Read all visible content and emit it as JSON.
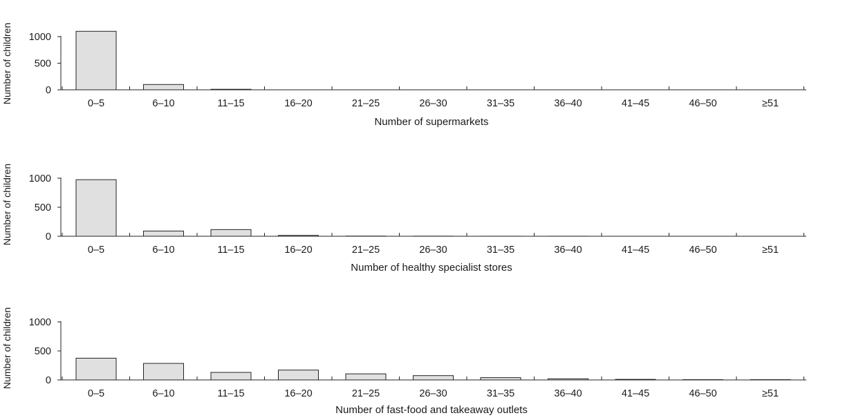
{
  "chart_data": [
    {
      "type": "bar",
      "xlabel": "Number of supermarkets",
      "ylabel": "Number of children",
      "ylim": [
        0,
        1000
      ],
      "yticks": [
        "0",
        "500",
        "1000"
      ],
      "categories": [
        "0–5",
        "6–10",
        "11–15",
        "16–20",
        "21–25",
        "26–30",
        "31–35",
        "36–40",
        "41–45",
        "46–50",
        "≥51"
      ],
      "values": [
        1100,
        100,
        10,
        0,
        0,
        0,
        0,
        0,
        0,
        0,
        0
      ],
      "bar_color": "#e0e0e0"
    },
    {
      "type": "bar",
      "xlabel": "Number of healthy specialist stores",
      "ylabel": "Number of children",
      "ylim": [
        0,
        1000
      ],
      "yticks": [
        "0",
        "500",
        "1000"
      ],
      "categories": [
        "0–5",
        "6–10",
        "11–15",
        "16–20",
        "21–25",
        "26–30",
        "31–35",
        "36–40",
        "41–45",
        "46–50",
        "≥51"
      ],
      "values": [
        975,
        90,
        115,
        15,
        3,
        2,
        1,
        1,
        0,
        0,
        0
      ],
      "bar_color": "#e0e0e0"
    },
    {
      "type": "bar",
      "xlabel": "Number of fast-food and takeaway outlets",
      "ylabel": "Number of children",
      "ylim": [
        0,
        1000
      ],
      "yticks": [
        "0",
        "500",
        "1000"
      ],
      "categories": [
        "0–5",
        "6–10",
        "11–15",
        "16–20",
        "21–25",
        "26–30",
        "31–35",
        "36–40",
        "41–45",
        "46–50",
        "≥51"
      ],
      "values": [
        375,
        285,
        130,
        170,
        105,
        75,
        40,
        20,
        10,
        5,
        5
      ],
      "bar_color": "#e0e0e0"
    }
  ]
}
